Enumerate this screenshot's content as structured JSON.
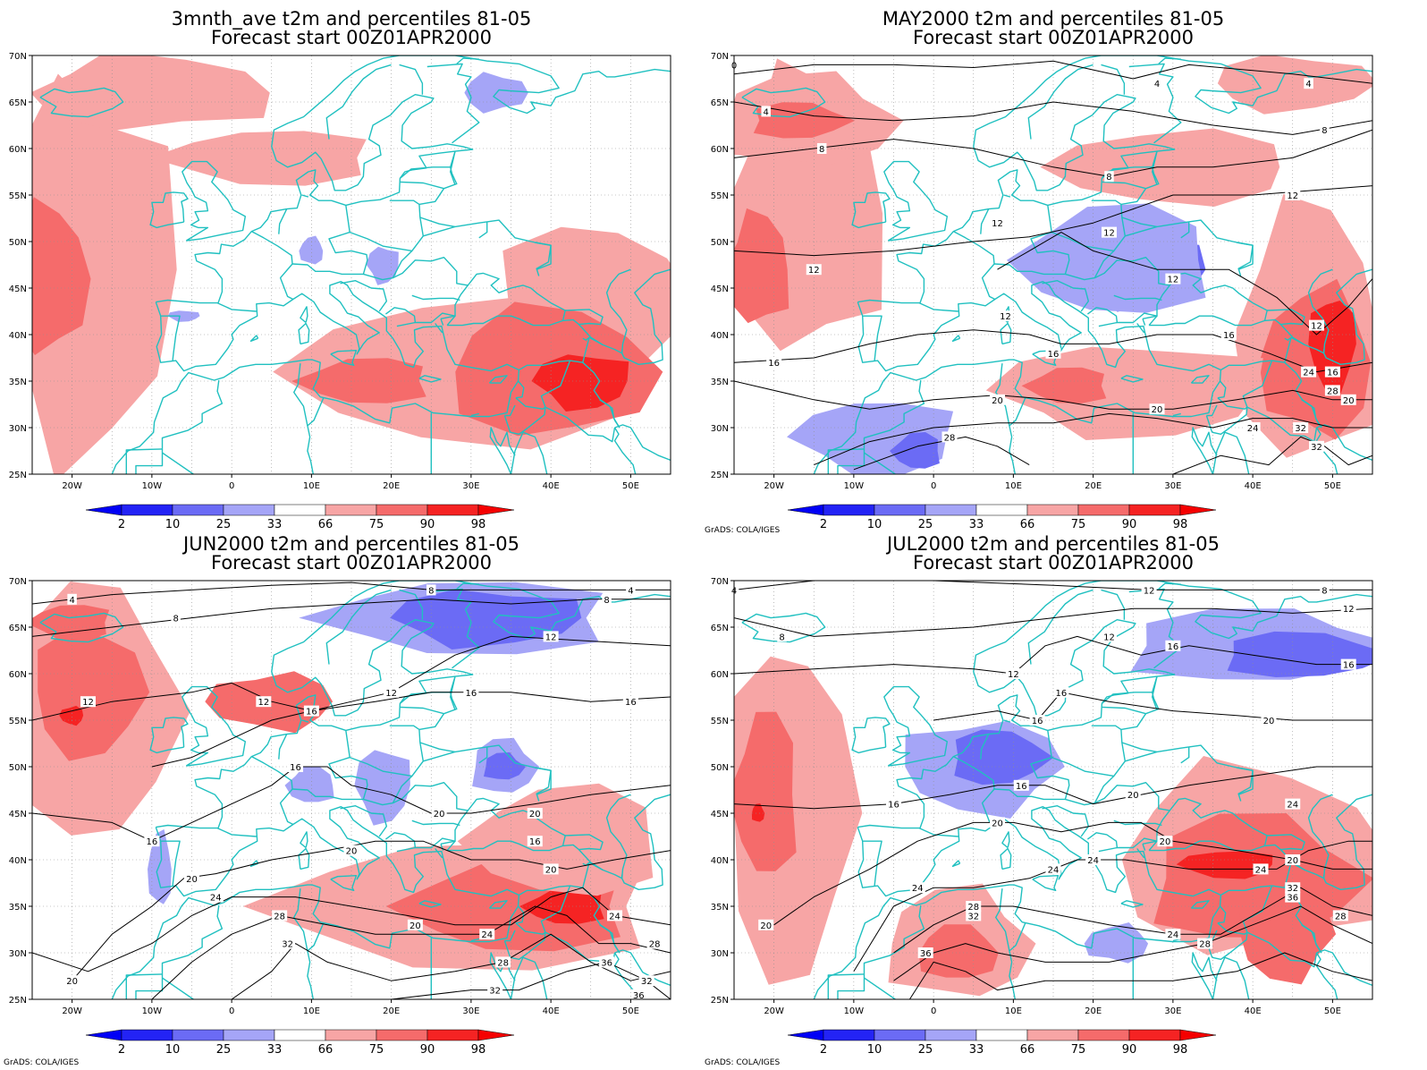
{
  "colors": {
    "d_blue": "#2323f5",
    "m_blue": "#6b6bf5",
    "l_blue": "#a5a5f7",
    "l_red": "#f7a5a5",
    "m_red": "#f56b6b",
    "d_red": "#f52323",
    "coast": "#20c0c0",
    "contour": "#000000",
    "grid": "#909090"
  },
  "colorbar": {
    "levels": [
      "2",
      "10",
      "25",
      "33",
      "66",
      "75",
      "90",
      "98"
    ]
  },
  "axes": {
    "lon_ticks": [
      "20W",
      "10W",
      "0",
      "10E",
      "20E",
      "30E",
      "40E",
      "50E"
    ],
    "lat_ticks": [
      "25N",
      "30N",
      "35N",
      "40N",
      "45N",
      "50N",
      "55N",
      "60N",
      "65N",
      "70N"
    ],
    "lon_range": [
      -25,
      55
    ],
    "lat_range": [
      25,
      70
    ]
  },
  "credit": "GrADS: COLA/IGES",
  "panels": [
    {
      "title1": "3mnth_ave t2m and percentiles 81-05",
      "title2": "Forecast start 00Z01APR2000",
      "credit": "",
      "contour_labels": [],
      "anomalies": [
        {
          "cls": "l_red",
          "lon": -18,
          "lat": 47,
          "rx": 11,
          "ry": 20
        },
        {
          "cls": "m_red",
          "lon": -23,
          "lat": 46,
          "rx": 5,
          "ry": 8
        },
        {
          "cls": "l_red",
          "lon": -10,
          "lat": 66,
          "rx": 15,
          "ry": 4
        },
        {
          "cls": "l_red",
          "lon": 5,
          "lat": 59,
          "rx": 13,
          "ry": 3
        },
        {
          "cls": "l_red",
          "lon": 30,
          "lat": 36,
          "rx": 22,
          "ry": 8
        },
        {
          "cls": "l_red",
          "lon": 45,
          "lat": 43,
          "rx": 12,
          "ry": 9
        },
        {
          "cls": "m_red",
          "lon": 40,
          "lat": 36,
          "rx": 13,
          "ry": 7
        },
        {
          "cls": "d_red",
          "lon": 44,
          "lat": 35,
          "rx": 6,
          "ry": 3
        },
        {
          "cls": "m_red",
          "lon": 17,
          "lat": 35,
          "rx": 8,
          "ry": 2.5
        },
        {
          "cls": "l_blue",
          "lon": 33,
          "lat": 66,
          "rx": 4,
          "ry": 2
        },
        {
          "cls": "l_blue",
          "lon": 10,
          "lat": 49,
          "rx": 1.5,
          "ry": 1.5
        },
        {
          "cls": "l_blue",
          "lon": 19,
          "lat": 47.5,
          "rx": 2,
          "ry": 2
        },
        {
          "cls": "l_blue",
          "lon": -6,
          "lat": 42,
          "rx": 2,
          "ry": 0.6
        }
      ]
    },
    {
      "title1": "MAY2000 t2m and percentiles 81-05",
      "title2": "Forecast start 00Z01APR2000",
      "credit": "GrADS: COLA/IGES",
      "contour_labels": [
        {
          "text": "0",
          "lon": -25,
          "lat": 69
        },
        {
          "text": "4",
          "lon": -21,
          "lat": 64
        },
        {
          "text": "4",
          "lon": 28,
          "lat": 67
        },
        {
          "text": "4",
          "lon": 47,
          "lat": 67
        },
        {
          "text": "8",
          "lon": -14,
          "lat": 60
        },
        {
          "text": "8",
          "lon": 22,
          "lat": 57
        },
        {
          "text": "8",
          "lon": 49,
          "lat": 62
        },
        {
          "text": "12",
          "lon": 8,
          "lat": 52
        },
        {
          "text": "12",
          "lon": 22,
          "lat": 51
        },
        {
          "text": "12",
          "lon": 45,
          "lat": 55
        },
        {
          "text": "12",
          "lon": -15,
          "lat": 47
        },
        {
          "text": "12",
          "lon": 30,
          "lat": 46
        },
        {
          "text": "12",
          "lon": 9,
          "lat": 42
        },
        {
          "text": "12",
          "lon": 48,
          "lat": 41
        },
        {
          "text": "16",
          "lon": 15,
          "lat": 38
        },
        {
          "text": "16",
          "lon": -20,
          "lat": 37
        },
        {
          "text": "16",
          "lon": 37,
          "lat": 40
        },
        {
          "text": "16",
          "lon": 50,
          "lat": 36
        },
        {
          "text": "20",
          "lon": 8,
          "lat": 33
        },
        {
          "text": "20",
          "lon": 28,
          "lat": 32
        },
        {
          "text": "20",
          "lon": 52,
          "lat": 33
        },
        {
          "text": "24",
          "lon": 40,
          "lat": 30
        },
        {
          "text": "24",
          "lon": 47,
          "lat": 36
        },
        {
          "text": "28",
          "lon": 2,
          "lat": 29
        },
        {
          "text": "28",
          "lon": 50,
          "lat": 34
        },
        {
          "text": "32",
          "lon": 46,
          "lat": 30
        },
        {
          "text": "32",
          "lon": 48,
          "lat": 28
        }
      ],
      "anomalies": [
        {
          "cls": "l_red",
          "lon": -16,
          "lat": 53,
          "rx": 10,
          "ry": 15
        },
        {
          "cls": "m_red",
          "lon": -22,
          "lat": 47,
          "rx": 4,
          "ry": 6
        },
        {
          "cls": "l_red",
          "lon": -16,
          "lat": 63,
          "rx": 11,
          "ry": 5
        },
        {
          "cls": "m_red",
          "lon": -17,
          "lat": 63,
          "rx": 6,
          "ry": 2
        },
        {
          "cls": "l_red",
          "lon": 30,
          "lat": 58,
          "rx": 15,
          "ry": 4
        },
        {
          "cls": "l_red",
          "lon": 45,
          "lat": 67,
          "rx": 10,
          "ry": 3
        },
        {
          "cls": "l_red",
          "lon": 47,
          "lat": 40,
          "rx": 9,
          "ry": 14
        },
        {
          "cls": "m_red",
          "lon": 48,
          "lat": 37,
          "rx": 7,
          "ry": 8
        },
        {
          "cls": "d_red",
          "lon": 50,
          "lat": 39,
          "rx": 3,
          "ry": 5
        },
        {
          "cls": "l_red",
          "lon": 25,
          "lat": 34,
          "rx": 17,
          "ry": 5
        },
        {
          "cls": "m_red",
          "lon": 17,
          "lat": 34.5,
          "rx": 5,
          "ry": 2
        },
        {
          "cls": "m_blue",
          "lon": 26,
          "lat": 47,
          "rx": 8,
          "ry": 4
        },
        {
          "cls": "l_blue",
          "lon": 23,
          "lat": 48,
          "rx": 12,
          "ry": 6
        },
        {
          "cls": "l_blue",
          "lon": -7,
          "lat": 29,
          "rx": 10,
          "ry": 4
        },
        {
          "cls": "m_blue",
          "lon": -2,
          "lat": 27.5,
          "rx": 3,
          "ry": 2
        }
      ]
    },
    {
      "title1": "JUN2000 t2m and percentiles 81-05",
      "title2": "Forecast start 00Z01APR2000",
      "credit": "GrADS: COLA/IGES",
      "contour_labels": [
        {
          "text": "4",
          "lon": -20,
          "lat": 68
        },
        {
          "text": "4",
          "lon": 50,
          "lat": 69
        },
        {
          "text": "8",
          "lon": -7,
          "lat": 66
        },
        {
          "text": "8",
          "lon": 25,
          "lat": 69
        },
        {
          "text": "8",
          "lon": 47,
          "lat": 68
        },
        {
          "text": "12",
          "lon": -18,
          "lat": 57
        },
        {
          "text": "12",
          "lon": 4,
          "lat": 57
        },
        {
          "text": "12",
          "lon": 20,
          "lat": 58
        },
        {
          "text": "12",
          "lon": 40,
          "lat": 64
        },
        {
          "text": "16",
          "lon": 10,
          "lat": 56
        },
        {
          "text": "16",
          "lon": 30,
          "lat": 58
        },
        {
          "text": "16",
          "lon": 50,
          "lat": 57
        },
        {
          "text": "16",
          "lon": 8,
          "lat": 50
        },
        {
          "text": "16",
          "lon": -10,
          "lat": 42
        },
        {
          "text": "16",
          "lon": 38,
          "lat": 42
        },
        {
          "text": "20",
          "lon": -5,
          "lat": 38
        },
        {
          "text": "20",
          "lon": 15,
          "lat": 41
        },
        {
          "text": "20",
          "lon": 26,
          "lat": 45
        },
        {
          "text": "20",
          "lon": 38,
          "lat": 45
        },
        {
          "text": "20",
          "lon": 40,
          "lat": 39
        },
        {
          "text": "20",
          "lon": 23,
          "lat": 33
        },
        {
          "text": "20",
          "lon": -20,
          "lat": 27
        },
        {
          "text": "24",
          "lon": -2,
          "lat": 36
        },
        {
          "text": "24",
          "lon": 32,
          "lat": 32
        },
        {
          "text": "24",
          "lon": 48,
          "lat": 34
        },
        {
          "text": "28",
          "lon": 6,
          "lat": 34
        },
        {
          "text": "28",
          "lon": 34,
          "lat": 29
        },
        {
          "text": "28",
          "lon": 53,
          "lat": 31
        },
        {
          "text": "32",
          "lon": 7,
          "lat": 31
        },
        {
          "text": "32",
          "lon": 33,
          "lat": 26
        },
        {
          "text": "32",
          "lon": 52,
          "lat": 27
        },
        {
          "text": "36",
          "lon": 47,
          "lat": 29
        },
        {
          "text": "36",
          "lon": 51,
          "lat": 25.5
        }
      ],
      "anomalies": [
        {
          "cls": "l_red",
          "lon": -17,
          "lat": 56,
          "rx": 10,
          "ry": 14
        },
        {
          "cls": "m_red",
          "lon": -18,
          "lat": 58,
          "rx": 7,
          "ry": 7
        },
        {
          "cls": "d_red",
          "lon": -20,
          "lat": 55.5,
          "rx": 1.5,
          "ry": 1
        },
        {
          "cls": "m_red",
          "lon": -20,
          "lat": 65.5,
          "rx": 5,
          "ry": 2
        },
        {
          "cls": "m_red",
          "lon": 5,
          "lat": 57,
          "rx": 8,
          "ry": 3
        },
        {
          "cls": "l_red",
          "lon": 30,
          "lat": 35,
          "rx": 24,
          "ry": 7
        },
        {
          "cls": "m_red",
          "lon": 36,
          "lat": 35,
          "rx": 14,
          "ry": 5
        },
        {
          "cls": "d_red",
          "lon": 42,
          "lat": 35,
          "rx": 5,
          "ry": 2
        },
        {
          "cls": "l_red",
          "lon": 42,
          "lat": 42,
          "rx": 12,
          "ry": 6
        },
        {
          "cls": "l_blue",
          "lon": 30,
          "lat": 66,
          "rx": 18,
          "ry": 4
        },
        {
          "cls": "m_blue",
          "lon": 32,
          "lat": 66,
          "rx": 12,
          "ry": 3
        },
        {
          "cls": "l_blue",
          "lon": 19,
          "lat": 48,
          "rx": 3.5,
          "ry": 4
        },
        {
          "cls": "l_blue",
          "lon": 34,
          "lat": 50,
          "rx": 4,
          "ry": 3
        },
        {
          "cls": "m_blue",
          "lon": 34,
          "lat": 50,
          "rx": 2.5,
          "ry": 1.5
        },
        {
          "cls": "l_blue",
          "lon": 10,
          "lat": 48,
          "rx": 3,
          "ry": 2
        },
        {
          "cls": "l_blue",
          "lon": -9,
          "lat": 39,
          "rx": 1.5,
          "ry": 4
        }
      ]
    },
    {
      "title1": "JUL2000 t2m and percentiles 81-05",
      "title2": "Forecast start 00Z01APR2000",
      "credit": "GrADS: COLA/IGES",
      "contour_labels": [
        {
          "text": "4",
          "lon": -25,
          "lat": 69
        },
        {
          "text": "8",
          "lon": -19,
          "lat": 64
        },
        {
          "text": "8",
          "lon": 49,
          "lat": 69
        },
        {
          "text": "12",
          "lon": 27,
          "lat": 69
        },
        {
          "text": "12",
          "lon": 52,
          "lat": 67
        },
        {
          "text": "12",
          "lon": 10,
          "lat": 60
        },
        {
          "text": "12",
          "lon": 22,
          "lat": 64
        },
        {
          "text": "16",
          "lon": 16,
          "lat": 58
        },
        {
          "text": "16",
          "lon": 30,
          "lat": 63
        },
        {
          "text": "16",
          "lon": 52,
          "lat": 61
        },
        {
          "text": "16",
          "lon": 13,
          "lat": 55
        },
        {
          "text": "16",
          "lon": 11,
          "lat": 48
        },
        {
          "text": "16",
          "lon": -5,
          "lat": 46
        },
        {
          "text": "20",
          "lon": 42,
          "lat": 55
        },
        {
          "text": "20",
          "lon": 25,
          "lat": 47
        },
        {
          "text": "20",
          "lon": 8,
          "lat": 44
        },
        {
          "text": "20",
          "lon": 29,
          "lat": 42
        },
        {
          "text": "20",
          "lon": 45,
          "lat": 40
        },
        {
          "text": "20",
          "lon": -21,
          "lat": 33
        },
        {
          "text": "24",
          "lon": 20,
          "lat": 40
        },
        {
          "text": "24",
          "lon": 15,
          "lat": 39
        },
        {
          "text": "24",
          "lon": 41,
          "lat": 39
        },
        {
          "text": "24",
          "lon": 45,
          "lat": 46
        },
        {
          "text": "24",
          "lon": -2,
          "lat": 37
        },
        {
          "text": "24",
          "lon": 30,
          "lat": 32
        },
        {
          "text": "28",
          "lon": 5,
          "lat": 35
        },
        {
          "text": "28",
          "lon": 34,
          "lat": 31
        },
        {
          "text": "28",
          "lon": 51,
          "lat": 34
        },
        {
          "text": "32",
          "lon": 5,
          "lat": 34
        },
        {
          "text": "32",
          "lon": 45,
          "lat": 37
        },
        {
          "text": "36",
          "lon": -1,
          "lat": 30
        },
        {
          "text": "36",
          "lon": 45,
          "lat": 36
        }
      ],
      "anomalies": [
        {
          "cls": "l_red",
          "lon": -18,
          "lat": 45,
          "rx": 8,
          "ry": 18
        },
        {
          "cls": "m_red",
          "lon": -21,
          "lat": 47,
          "rx": 4,
          "ry": 9
        },
        {
          "cls": "d_red",
          "lon": -22,
          "lat": 45,
          "rx": 0.8,
          "ry": 1
        },
        {
          "cls": "l_red",
          "lon": 40,
          "lat": 40,
          "rx": 17,
          "ry": 10
        },
        {
          "cls": "m_red",
          "lon": 40,
          "lat": 38,
          "rx": 13,
          "ry": 7
        },
        {
          "cls": "d_red",
          "lon": 37,
          "lat": 39.5,
          "rx": 6,
          "ry": 1.5
        },
        {
          "cls": "m_red",
          "lon": 44,
          "lat": 32,
          "rx": 6,
          "ry": 5
        },
        {
          "cls": "l_red",
          "lon": 3,
          "lat": 31,
          "rx": 9,
          "ry": 6
        },
        {
          "cls": "m_red",
          "lon": 3,
          "lat": 30,
          "rx": 5,
          "ry": 3
        },
        {
          "cls": "l_blue",
          "lon": 40,
          "lat": 63,
          "rx": 16,
          "ry": 4
        },
        {
          "cls": "m_blue",
          "lon": 46,
          "lat": 62,
          "rx": 10,
          "ry": 2.5
        },
        {
          "cls": "l_blue",
          "lon": 6,
          "lat": 50,
          "rx": 10,
          "ry": 5
        },
        {
          "cls": "m_blue",
          "lon": 8,
          "lat": 51,
          "rx": 6,
          "ry": 3
        },
        {
          "cls": "l_blue",
          "lon": 23,
          "lat": 31,
          "rx": 4,
          "ry": 2
        }
      ]
    }
  ]
}
